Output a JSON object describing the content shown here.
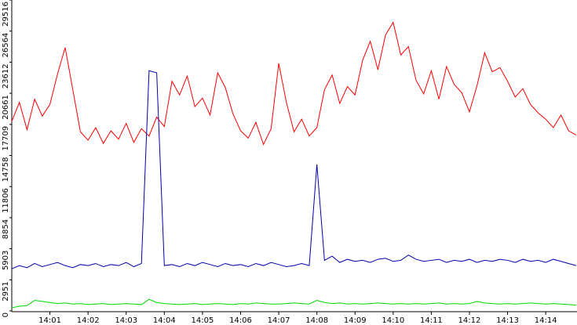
{
  "chart_data": {
    "type": "line",
    "x": [
      0,
      0.2,
      0.4,
      0.6,
      0.8,
      1,
      1.2,
      1.4,
      1.6,
      1.8,
      2,
      2.2,
      2.4,
      2.6,
      2.8,
      3,
      3.2,
      3.4,
      3.6,
      3.8,
      4,
      4.2,
      4.4,
      4.6,
      4.8,
      5,
      5.2,
      5.4,
      5.6,
      5.8,
      6,
      6.2,
      6.4,
      6.6,
      6.8,
      7,
      7.2,
      7.4,
      7.6,
      7.8,
      8,
      8.2,
      8.4,
      8.6,
      8.8,
      9,
      9.2,
      9.4,
      9.6,
      9.8,
      10,
      10.2,
      10.4,
      10.6,
      10.8,
      11,
      11.2,
      11.4,
      11.6,
      11.8,
      12,
      12.2,
      12.4,
      12.6,
      12.8,
      13,
      13.2,
      13.4,
      13.6,
      13.8,
      14,
      14.2,
      14.4,
      14.6,
      14.8
    ],
    "series": [
      {
        "color": "#ff0000",
        "values": [
          18000,
          19800,
          17200,
          20100,
          18500,
          19600,
          22500,
          25000,
          21000,
          17000,
          16200,
          17400,
          15900,
          17100,
          16300,
          17800,
          16000,
          17300,
          16600,
          18400,
          17500,
          21800,
          20500,
          22300,
          19400,
          20200,
          18600,
          22600,
          21200,
          18700,
          17100,
          16400,
          17900,
          15800,
          17300,
          23500,
          19800,
          17000,
          18200,
          16600,
          17400,
          21000,
          22400,
          19700,
          21300,
          20500,
          23800,
          25600,
          22900,
          26200,
          27400,
          24300,
          25100,
          21900,
          20600,
          22800,
          20100,
          23200,
          21500,
          20700,
          18900,
          21400,
          24500,
          22700,
          23100,
          21800,
          20300,
          21100,
          19600,
          18800,
          18200,
          17400,
          18600,
          17100,
          16700
        ]
      },
      {
        "color": "#0000aa",
        "values": [
          4000,
          4300,
          4100,
          4500,
          4200,
          4400,
          4600,
          4300,
          4100,
          4400,
          4300,
          4500,
          4200,
          4400,
          4300,
          4600,
          4200,
          4500,
          22800,
          22600,
          4300,
          4400,
          4200,
          4500,
          4300,
          4600,
          4400,
          4200,
          4500,
          4300,
          4400,
          4200,
          4500,
          4300,
          4600,
          4400,
          4200,
          4300,
          4500,
          4300,
          13900,
          4800,
          5200,
          4600,
          4900,
          4700,
          4800,
          4600,
          4900,
          5000,
          4700,
          4800,
          5300,
          4900,
          4700,
          4800,
          4900,
          4600,
          4800,
          4700,
          4900,
          4600,
          4800,
          4700,
          4900,
          4800,
          4600,
          4900,
          4700,
          4800,
          4600,
          4900,
          4700,
          4500,
          4300
        ]
      },
      {
        "color": "#00dd00",
        "values": [
          300,
          450,
          500,
          1000,
          900,
          800,
          700,
          750,
          650,
          700,
          600,
          650,
          700,
          600,
          650,
          700,
          650,
          600,
          1100,
          800,
          700,
          650,
          600,
          650,
          700,
          600,
          650,
          700,
          650,
          600,
          700,
          650,
          750,
          700,
          650,
          650,
          700,
          750,
          700,
          650,
          1000,
          800,
          700,
          750,
          650,
          700,
          650,
          700,
          750,
          700,
          650,
          700,
          650,
          700,
          650,
          700,
          750,
          650,
          700,
          650,
          700,
          900,
          750,
          700,
          650,
          700,
          650,
          700,
          750,
          700,
          650,
          700,
          650,
          600,
          550
        ]
      }
    ],
    "xlim": [
      0,
      14.8
    ],
    "xticks": [
      {
        "value": 1,
        "label": "14:01"
      },
      {
        "value": 2,
        "label": "14:02"
      },
      {
        "value": 3,
        "label": "14:03"
      },
      {
        "value": 4,
        "label": "14:04"
      },
      {
        "value": 5,
        "label": "14:05"
      },
      {
        "value": 6,
        "label": "14:06"
      },
      {
        "value": 7,
        "label": "14:07"
      },
      {
        "value": 8,
        "label": "14:08"
      },
      {
        "value": 9,
        "label": "14:09"
      },
      {
        "value": 10,
        "label": "14:10"
      },
      {
        "value": 11,
        "label": "14:11"
      },
      {
        "value": 12,
        "label": "14:12"
      },
      {
        "value": 13,
        "label": "14:13"
      },
      {
        "value": 14,
        "label": "14:14"
      }
    ],
    "ylim": [
      0,
      29516
    ],
    "yticks": [
      0,
      2951,
      5903,
      8854,
      11806,
      14758,
      17709,
      20661,
      23612,
      26564,
      29516
    ]
  }
}
